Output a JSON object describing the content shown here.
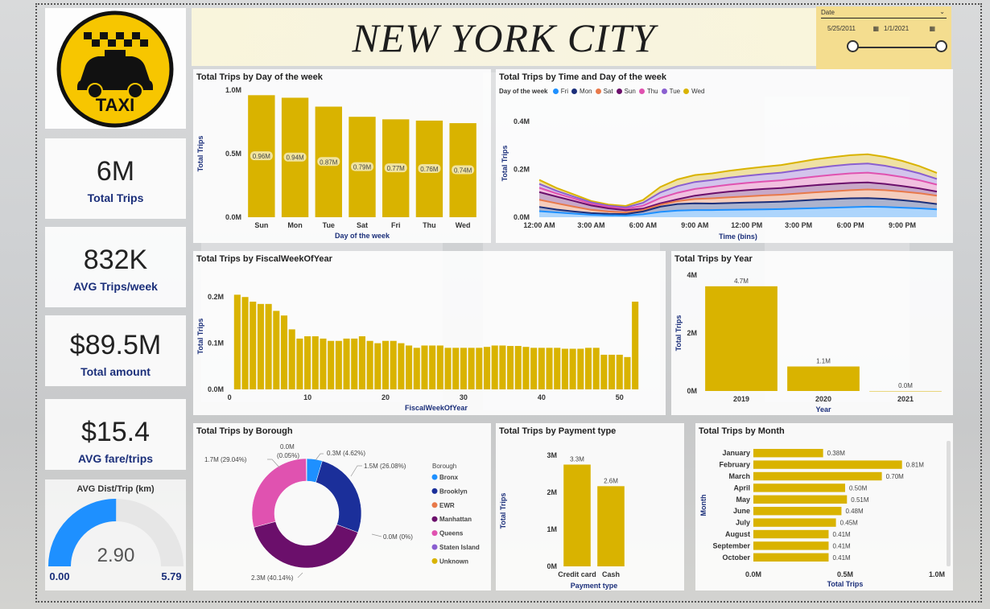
{
  "colors": {
    "gold": "#d9b300",
    "navy": "#1b2f7a",
    "blue": "#1e90ff"
  },
  "header": {
    "title": "NEW YORK CITY"
  },
  "logo": {
    "text": "TAXI"
  },
  "date_slicer": {
    "label": "Date",
    "start": "5/25/2011",
    "end": "1/1/2021",
    "icon": "calendar-icon"
  },
  "kpis": [
    {
      "value": "6M",
      "label": "Total Trips"
    },
    {
      "value": "832K",
      "label": "AVG Trips/week"
    },
    {
      "value": "$89.5M",
      "label": "Total amount"
    },
    {
      "value": "$15.4",
      "label": "AVG fare/trips"
    }
  ],
  "gauge": {
    "title": "AVG Dist/Trip (km)",
    "value": "2.90",
    "min": "0.00",
    "max": "5.79",
    "value_num": 2.9,
    "max_num": 5.79
  },
  "chart_data": [
    {
      "id": "dow",
      "type": "bar",
      "title": "Total Trips by Day of the week",
      "categories": [
        "Sun",
        "Mon",
        "Tue",
        "Sat",
        "Fri",
        "Thu",
        "Wed"
      ],
      "values": [
        0.96,
        0.94,
        0.87,
        0.79,
        0.77,
        0.76,
        0.74
      ],
      "labels": [
        "0.96M",
        "0.94M",
        "0.87M",
        "0.79M",
        "0.77M",
        "0.76M",
        "0.74M"
      ],
      "xlabel": "Day of the week",
      "ylabel": "Total Trips",
      "yticks": [
        "0.0M",
        "0.5M",
        "1.0M"
      ],
      "ylim": [
        0,
        1.0
      ]
    },
    {
      "id": "time",
      "type": "area",
      "title": "Total Trips by Time and Day of the week",
      "legend_title": "Day of the week",
      "x": [
        0,
        1,
        2,
        3,
        4,
        5,
        6,
        7,
        8,
        9,
        10,
        11,
        12,
        13,
        14,
        15,
        16,
        17,
        18,
        19,
        20,
        21,
        22,
        23
      ],
      "series": [
        {
          "name": "Fri",
          "color": "#1e90ff",
          "values": [
            0.025,
            0.02,
            0.015,
            0.01,
            0.008,
            0.007,
            0.012,
            0.022,
            0.028,
            0.03,
            0.03,
            0.031,
            0.032,
            0.033,
            0.034,
            0.036,
            0.038,
            0.04,
            0.042,
            0.044,
            0.043,
            0.04,
            0.037,
            0.033
          ]
        },
        {
          "name": "Mon",
          "color": "#1b2f7a",
          "values": [
            0.018,
            0.012,
            0.009,
            0.007,
            0.006,
            0.006,
            0.012,
            0.022,
            0.027,
            0.028,
            0.027,
            0.028,
            0.029,
            0.03,
            0.031,
            0.033,
            0.035,
            0.036,
            0.037,
            0.036,
            0.034,
            0.031,
            0.027,
            0.022
          ]
        },
        {
          "name": "Sat",
          "color": "#e8794a",
          "values": [
            0.03,
            0.026,
            0.02,
            0.014,
            0.01,
            0.007,
            0.006,
            0.008,
            0.012,
            0.018,
            0.022,
            0.024,
            0.026,
            0.028,
            0.029,
            0.03,
            0.031,
            0.032,
            0.034,
            0.036,
            0.036,
            0.036,
            0.036,
            0.035
          ]
        },
        {
          "name": "Sun",
          "color": "#6b0f6b",
          "values": [
            0.032,
            0.028,
            0.024,
            0.018,
            0.013,
            0.009,
            0.006,
            0.006,
            0.008,
            0.014,
            0.02,
            0.024,
            0.026,
            0.027,
            0.028,
            0.029,
            0.03,
            0.031,
            0.03,
            0.029,
            0.026,
            0.023,
            0.02,
            0.017
          ]
        },
        {
          "name": "Thu",
          "color": "#e052b0",
          "values": [
            0.018,
            0.013,
            0.01,
            0.007,
            0.006,
            0.006,
            0.012,
            0.022,
            0.027,
            0.028,
            0.028,
            0.029,
            0.03,
            0.031,
            0.032,
            0.034,
            0.036,
            0.038,
            0.04,
            0.041,
            0.04,
            0.038,
            0.034,
            0.029
          ]
        },
        {
          "name": "Tue",
          "color": "#8a5fd0",
          "values": [
            0.016,
            0.011,
            0.008,
            0.006,
            0.005,
            0.006,
            0.012,
            0.023,
            0.028,
            0.029,
            0.028,
            0.029,
            0.03,
            0.031,
            0.032,
            0.034,
            0.036,
            0.037,
            0.038,
            0.038,
            0.036,
            0.033,
            0.029,
            0.024
          ]
        },
        {
          "name": "Wed",
          "color": "#d9b300",
          "values": [
            0.017,
            0.012,
            0.009,
            0.006,
            0.005,
            0.006,
            0.012,
            0.023,
            0.028,
            0.029,
            0.028,
            0.029,
            0.03,
            0.031,
            0.032,
            0.034,
            0.036,
            0.037,
            0.038,
            0.039,
            0.037,
            0.034,
            0.03,
            0.025
          ]
        }
      ],
      "xticks": [
        "12:00 AM",
        "3:00 AM",
        "6:00 AM",
        "9:00 AM",
        "12:00 PM",
        "3:00 PM",
        "6:00 PM",
        "9:00 PM"
      ],
      "xtick_values": [
        0,
        3,
        6,
        9,
        12,
        15,
        18,
        21
      ],
      "yticks": [
        "0.0M",
        "0.2M",
        "0.4M"
      ],
      "ylim": [
        0,
        0.45
      ],
      "xlabel": "Time (bins)",
      "ylabel": "Total Trips"
    },
    {
      "id": "week",
      "type": "bar",
      "title": "Total Trips by FiscalWeekOfYear",
      "x_start": 1,
      "values": [
        0.205,
        0.2,
        0.19,
        0.185,
        0.185,
        0.17,
        0.16,
        0.13,
        0.11,
        0.115,
        0.115,
        0.11,
        0.105,
        0.105,
        0.11,
        0.11,
        0.115,
        0.105,
        0.1,
        0.105,
        0.105,
        0.1,
        0.095,
        0.09,
        0.095,
        0.095,
        0.095,
        0.09,
        0.09,
        0.09,
        0.09,
        0.09,
        0.092,
        0.095,
        0.095,
        0.094,
        0.094,
        0.092,
        0.09,
        0.09,
        0.09,
        0.09,
        0.088,
        0.088,
        0.088,
        0.09,
        0.09,
        0.075,
        0.075,
        0.075,
        0.07,
        0.19
      ],
      "xticks": [
        0,
        10,
        20,
        30,
        40,
        50
      ],
      "yticks": [
        "0.0M",
        "0.1M",
        "0.2M"
      ],
      "ylim": [
        0,
        0.23
      ],
      "xlabel": "FiscalWeekOfYear",
      "ylabel": "Total Trips"
    },
    {
      "id": "year",
      "type": "bar",
      "title": "Total Trips by Year",
      "categories": [
        "2019",
        "2020",
        "2021"
      ],
      "values": [
        4.7,
        1.1,
        0.0
      ],
      "labels": [
        "4.7M",
        "1.1M",
        "0.0M"
      ],
      "yticks": [
        "0M",
        "2M",
        "4M"
      ],
      "ylim": [
        0,
        5.2
      ],
      "xlabel": "Year",
      "ylabel": "Total Trips"
    },
    {
      "id": "borough",
      "type": "pie",
      "title": "Total Trips by Borough",
      "legend_title": "Borough",
      "categories": [
        "Bronx",
        "Brooklyn",
        "EWR",
        "Manhattan",
        "Queens",
        "Staten Island",
        "Unknown"
      ],
      "colors": [
        "#1e90ff",
        "#1b2f9a",
        "#e8794a",
        "#6b0f6b",
        "#e052b0",
        "#8a5fd0",
        "#d9b300"
      ],
      "values": [
        4.62,
        26.08,
        0.0,
        40.14,
        29.04,
        0.05,
        0.05
      ],
      "labels": [
        "0.3M (4.62%)",
        "1.5M (26.08%)",
        "0.0M (0%)",
        "2.3M (40.14%)",
        "1.7M (29.04%)",
        "0.0M",
        "(0.05%)"
      ]
    },
    {
      "id": "payment",
      "type": "bar",
      "title": "Total Trips by Payment type",
      "categories": [
        "Credit card",
        "Cash"
      ],
      "values": [
        3.3,
        2.6
      ],
      "labels": [
        "3.3M",
        "2.6M"
      ],
      "yticks": [
        "0M",
        "1M",
        "2M",
        "3M"
      ],
      "ylim": [
        0,
        3.6
      ],
      "xlabel": "Payment type",
      "ylabel": "Total Trips"
    },
    {
      "id": "month",
      "type": "bar",
      "orientation": "horizontal",
      "title": "Total Trips by Month",
      "categories": [
        "January",
        "February",
        "March",
        "April",
        "May",
        "June",
        "July",
        "August",
        "September",
        "October"
      ],
      "values": [
        0.38,
        0.81,
        0.7,
        0.5,
        0.51,
        0.48,
        0.45,
        0.41,
        0.41,
        0.41
      ],
      "labels": [
        "0.38M",
        "0.81M",
        "0.70M",
        "0.50M",
        "0.51M",
        "0.48M",
        "0.45M",
        "0.41M",
        "0.41M",
        "0.41M"
      ],
      "xticks": [
        "0.0M",
        "0.5M",
        "1.0M"
      ],
      "xlim": [
        0,
        1.0
      ],
      "xlabel": "Total Trips",
      "ylabel": "Month"
    }
  ]
}
